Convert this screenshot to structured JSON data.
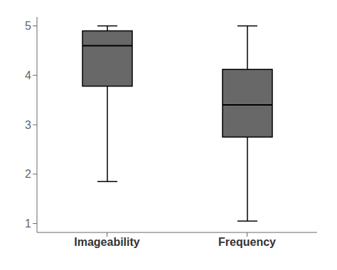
{
  "chart_data": {
    "type": "box",
    "categories": [
      "Imageability",
      "Frequency"
    ],
    "whisker_min": [
      1.85,
      1.05
    ],
    "q1": [
      3.78,
      2.75
    ],
    "median": [
      4.6,
      3.4
    ],
    "q3": [
      4.9,
      4.12
    ],
    "whisker_max": [
      5.0,
      5.0
    ],
    "ylim": [
      0.82,
      5.18
    ],
    "yticks": [
      1,
      2,
      3,
      4,
      5
    ],
    "color": "#686868",
    "grid": false
  }
}
